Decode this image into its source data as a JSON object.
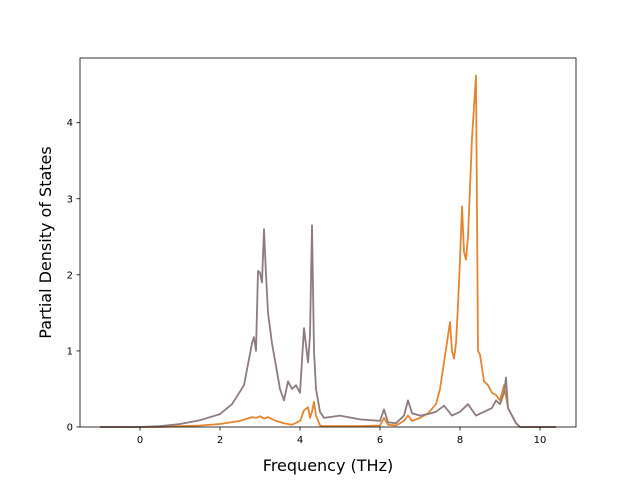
{
  "chart_data": {
    "type": "line",
    "title": "",
    "xlabel": "Frequency (THz)",
    "ylabel": "Partial Density of States",
    "xlim": [
      -1.5,
      10.9
    ],
    "ylim": [
      0,
      4.85
    ],
    "xticks": [
      0,
      2,
      4,
      6,
      8,
      10
    ],
    "xtick_labels": [
      "0",
      "2",
      "4",
      "6",
      "8",
      "10"
    ],
    "yticks": [
      0,
      1,
      2,
      3,
      4
    ],
    "ytick_labels": [
      "0",
      "1",
      "2",
      "3",
      "4"
    ],
    "grid": false,
    "legend": "none",
    "series": [
      {
        "color": "#e6852f",
        "x": [
          -1.0,
          0.0,
          0.5,
          1.0,
          1.5,
          2.0,
          2.5,
          2.8,
          2.9,
          3.0,
          3.1,
          3.2,
          3.4,
          3.6,
          3.8,
          4.0,
          4.1,
          4.2,
          4.25,
          4.3,
          4.35,
          4.4,
          4.5,
          4.6,
          5.0,
          5.5,
          6.0,
          6.1,
          6.2,
          6.4,
          6.6,
          6.7,
          6.8,
          7.0,
          7.2,
          7.4,
          7.5,
          7.6,
          7.7,
          7.75,
          7.8,
          7.85,
          7.9,
          7.95,
          8.0,
          8.05,
          8.1,
          8.15,
          8.2,
          8.3,
          8.4,
          8.45,
          8.5,
          8.6,
          8.7,
          8.8,
          8.9,
          9.0,
          9.1,
          9.2,
          9.3,
          9.4,
          9.5,
          10.0,
          10.4
        ],
        "y": [
          0,
          0,
          0.0,
          0.01,
          0.02,
          0.04,
          0.08,
          0.13,
          0.12,
          0.14,
          0.11,
          0.13,
          0.08,
          0.05,
          0.03,
          0.08,
          0.22,
          0.26,
          0.12,
          0.2,
          0.33,
          0.15,
          0.02,
          0.01,
          0.01,
          0.01,
          0.02,
          0.12,
          0.03,
          0.02,
          0.08,
          0.15,
          0.08,
          0.12,
          0.18,
          0.3,
          0.5,
          0.85,
          1.2,
          1.38,
          1.0,
          0.9,
          1.1,
          1.6,
          2.2,
          2.9,
          2.3,
          2.2,
          2.5,
          3.8,
          4.62,
          1.0,
          0.95,
          0.6,
          0.55,
          0.45,
          0.42,
          0.35,
          0.55,
          0.25,
          0.15,
          0.05,
          0,
          0,
          0
        ]
      },
      {
        "color": "#8c7b7f",
        "x": [
          -1.0,
          0.0,
          0.5,
          1.0,
          1.5,
          2.0,
          2.3,
          2.6,
          2.8,
          2.85,
          2.9,
          2.95,
          3.0,
          3.05,
          3.1,
          3.15,
          3.2,
          3.3,
          3.4,
          3.5,
          3.6,
          3.7,
          3.8,
          3.9,
          4.0,
          4.1,
          4.2,
          4.25,
          4.3,
          4.35,
          4.4,
          4.5,
          4.6,
          5.0,
          5.5,
          6.0,
          6.1,
          6.2,
          6.4,
          6.6,
          6.7,
          6.8,
          7.0,
          7.2,
          7.4,
          7.6,
          7.8,
          8.0,
          8.2,
          8.4,
          8.6,
          8.8,
          8.9,
          9.0,
          9.1,
          9.15,
          9.2,
          9.3,
          9.4,
          9.5,
          10.0,
          10.4
        ],
        "y": [
          0,
          0,
          0.01,
          0.04,
          0.09,
          0.17,
          0.3,
          0.55,
          1.1,
          1.18,
          1.0,
          2.05,
          2.03,
          1.9,
          2.6,
          2.0,
          1.5,
          1.1,
          0.8,
          0.5,
          0.35,
          0.6,
          0.5,
          0.55,
          0.45,
          1.3,
          0.85,
          1.2,
          2.65,
          1.0,
          0.5,
          0.2,
          0.12,
          0.15,
          0.1,
          0.08,
          0.23,
          0.06,
          0.05,
          0.15,
          0.35,
          0.18,
          0.15,
          0.17,
          0.2,
          0.28,
          0.15,
          0.2,
          0.3,
          0.15,
          0.2,
          0.25,
          0.35,
          0.3,
          0.45,
          0.65,
          0.25,
          0.15,
          0.05,
          0,
          0,
          0
        ]
      }
    ]
  }
}
